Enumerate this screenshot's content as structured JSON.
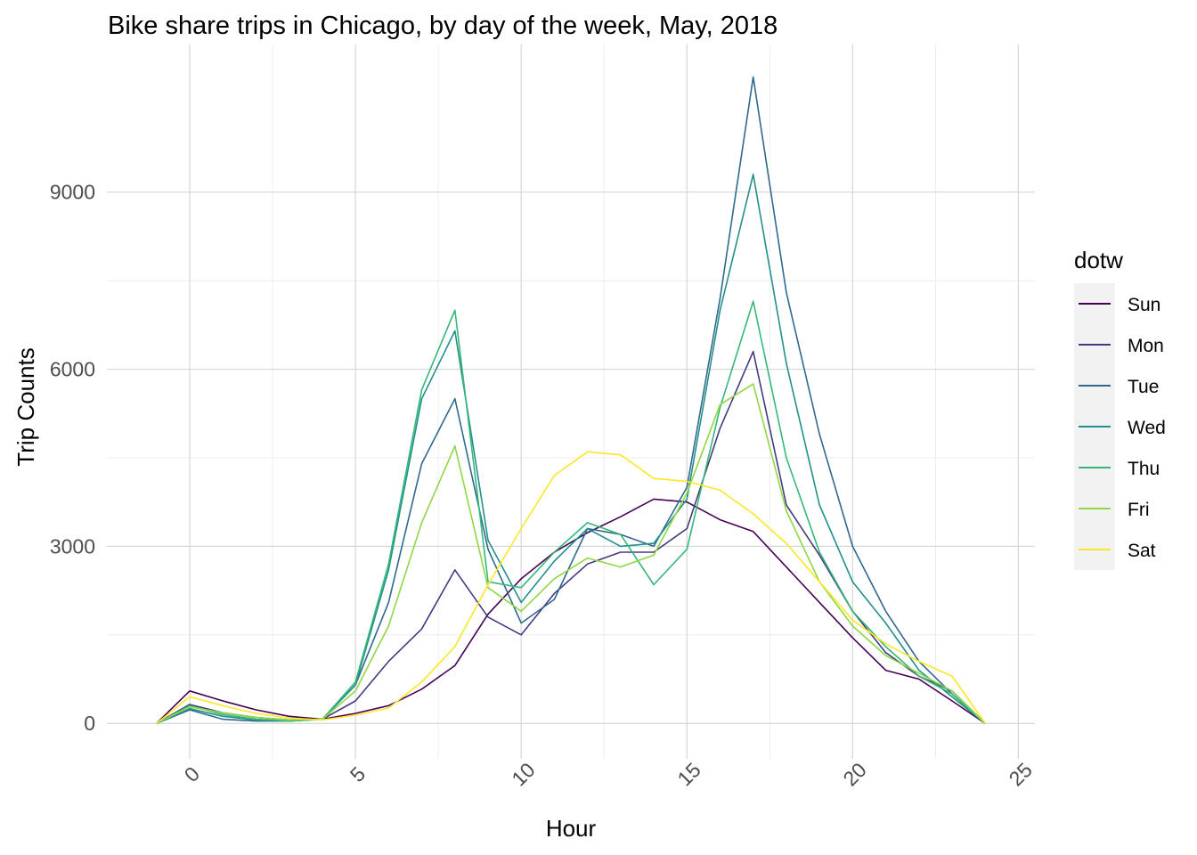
{
  "chart_data": {
    "type": "line",
    "title": "Bike share trips in Chicago, by day of the week, May, 2018",
    "xlabel": "Hour",
    "ylabel": "Trip Counts",
    "xlim": [
      -2.5,
      25.5
    ],
    "ylim": [
      -600,
      11500
    ],
    "x_ticks": [
      "0",
      "5",
      "10",
      "15",
      "20",
      "25"
    ],
    "y_ticks": [
      "0",
      "3000",
      "6000",
      "9000"
    ],
    "grid": true,
    "legend": {
      "title": "dotw",
      "position": "right"
    },
    "x": [
      -1,
      0,
      1,
      2,
      3,
      4,
      5,
      6,
      7,
      8,
      9,
      10,
      11,
      12,
      13,
      14,
      15,
      16,
      17,
      18,
      19,
      20,
      21,
      22,
      23,
      24
    ],
    "series": [
      {
        "name": "Sun",
        "color": "#440154",
        "values": [
          0,
          550,
          380,
          230,
          120,
          70,
          170,
          300,
          580,
          980,
          1850,
          2450,
          2900,
          3230,
          3500,
          3800,
          3750,
          3450,
          3250,
          2650,
          2050,
          1450,
          900,
          750,
          380,
          0
        ]
      },
      {
        "name": "Mon",
        "color": "#443A83",
        "values": [
          0,
          320,
          180,
          100,
          60,
          70,
          380,
          1050,
          1600,
          2600,
          1800,
          1500,
          2200,
          2700,
          2900,
          2900,
          3300,
          5000,
          6300,
          3700,
          2850,
          1900,
          1200,
          800,
          550,
          0
        ]
      },
      {
        "name": "Tue",
        "color": "#31688E",
        "values": [
          0,
          230,
          70,
          40,
          40,
          70,
          650,
          2050,
          4400,
          5500,
          2950,
          1700,
          2100,
          3300,
          3200,
          3000,
          4000,
          7200,
          10950,
          7300,
          4900,
          3000,
          1900,
          1050,
          500,
          0
        ]
      },
      {
        "name": "Wed",
        "color": "#21908C",
        "values": [
          0,
          250,
          120,
          60,
          40,
          70,
          650,
          2600,
          5500,
          6650,
          3100,
          2050,
          2750,
          3300,
          3000,
          3050,
          3800,
          7000,
          9300,
          6100,
          3700,
          2400,
          1700,
          900,
          450,
          0
        ]
      },
      {
        "name": "Thu",
        "color": "#35B779",
        "values": [
          0,
          300,
          150,
          70,
          40,
          70,
          700,
          2700,
          5650,
          7000,
          2400,
          2300,
          2900,
          3400,
          3200,
          2350,
          2950,
          5350,
          7150,
          4500,
          2900,
          1900,
          1300,
          800,
          500,
          0
        ]
      },
      {
        "name": "Fri",
        "color": "#8FD744",
        "values": [
          0,
          280,
          180,
          100,
          60,
          70,
          550,
          1650,
          3400,
          4700,
          2300,
          1900,
          2450,
          2800,
          2650,
          2850,
          3900,
          5400,
          5750,
          3600,
          2400,
          1650,
          1150,
          850,
          550,
          0
        ]
      },
      {
        "name": "Sat",
        "color": "#FDE725",
        "values": [
          0,
          450,
          300,
          170,
          90,
          60,
          140,
          260,
          700,
          1300,
          2350,
          3300,
          4200,
          4600,
          4550,
          4150,
          4100,
          3950,
          3550,
          3050,
          2400,
          1750,
          1350,
          1050,
          800,
          0
        ]
      }
    ]
  }
}
